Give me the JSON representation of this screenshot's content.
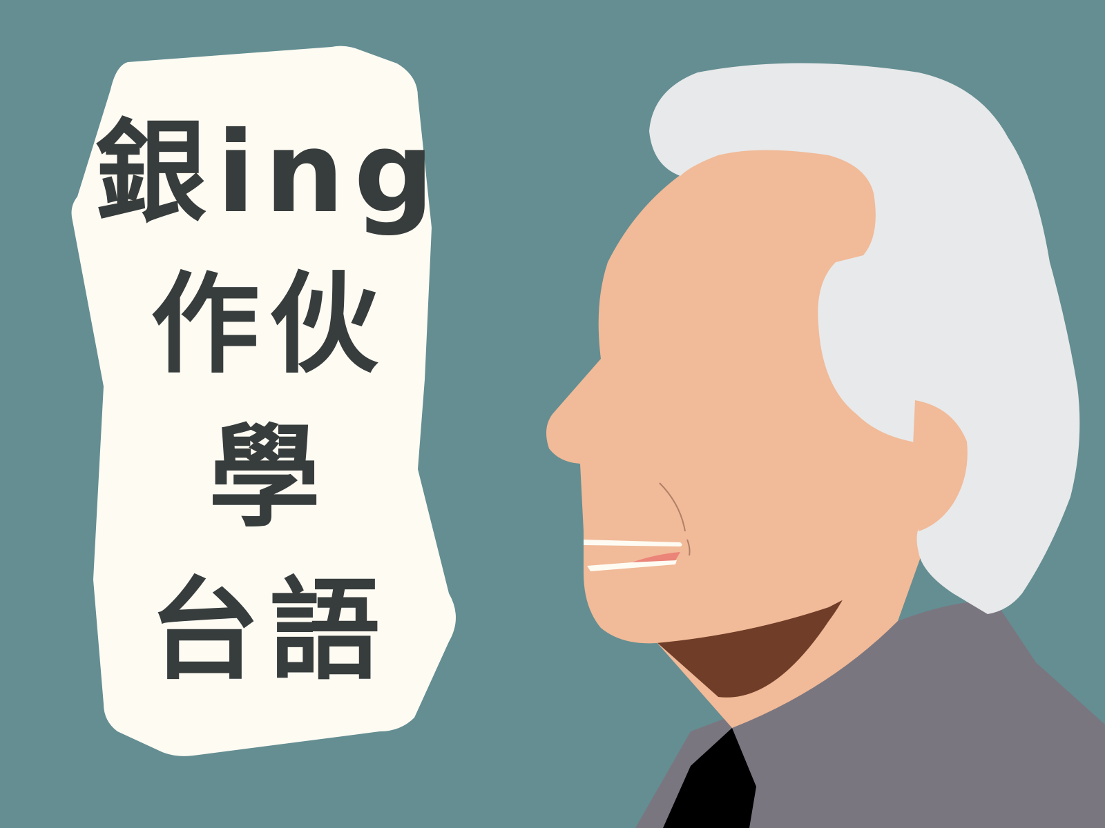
{
  "title": {
    "line1": "銀ing",
    "line2": "作伙",
    "line3": "學",
    "line4": "台語"
  },
  "colors": {
    "background": "#648e92",
    "bubble": "#fefbf3",
    "text": "#373d3c",
    "skin": "#f1ba98",
    "hair": "#e8e9ea",
    "jacket": "#7a7680",
    "neck_shadow": "#703d28",
    "shirt": "#000000",
    "tongue": "#eb8479"
  }
}
